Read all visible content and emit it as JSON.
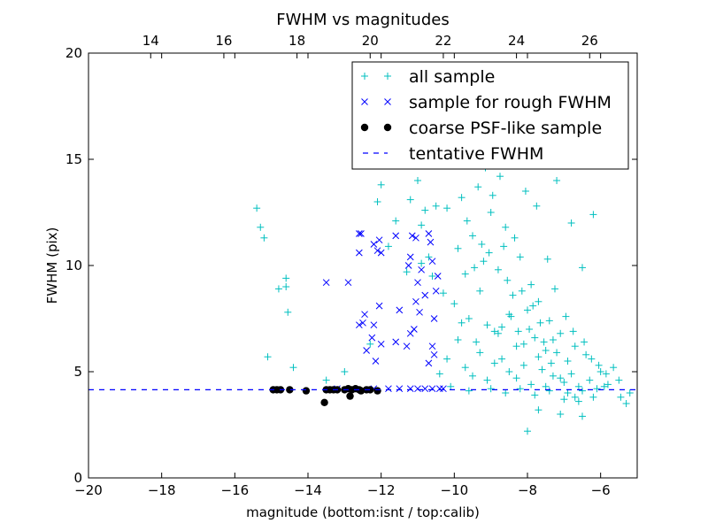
{
  "chart_data": {
    "type": "scatter",
    "title": "FWHM vs magnitudes",
    "xlabel": "magnitude (bottom:isnt / top:calib)",
    "ylabel": "FWHM (pix)",
    "xlim": [
      -20,
      -5
    ],
    "ylim": [
      0,
      20
    ],
    "top_xlim": [
      12.3,
      27.3
    ],
    "x_ticks": [
      -20,
      -18,
      -16,
      -14,
      -12,
      -10,
      -8,
      -6
    ],
    "x_tick_labels": [
      "−20",
      "−18",
      "−16",
      "−14",
      "−12",
      "−10",
      "−8",
      "−6"
    ],
    "top_x_ticks": [
      14,
      16,
      18,
      20,
      22,
      24,
      26
    ],
    "top_x_tick_labels": [
      "14",
      "16",
      "18",
      "20",
      "22",
      "24",
      "26"
    ],
    "y_ticks": [
      0,
      5,
      10,
      15,
      20
    ],
    "y_tick_labels": [
      "0",
      "5",
      "10",
      "15",
      "20"
    ],
    "grid": false,
    "legend_position": "top-right",
    "series": [
      {
        "name": "all sample",
        "marker": "plus",
        "color": "#00bfbf",
        "points": [
          [
            -15.4,
            12.7
          ],
          [
            -15.3,
            11.8
          ],
          [
            -15.2,
            11.3
          ],
          [
            -15.1,
            5.7
          ],
          [
            -14.8,
            8.9
          ],
          [
            -14.6,
            9.4
          ],
          [
            -14.55,
            7.8
          ],
          [
            -14.4,
            5.2
          ],
          [
            -14.6,
            9.0
          ],
          [
            -12.1,
            13.0
          ],
          [
            -12.0,
            13.8
          ],
          [
            -11.6,
            12.1
          ],
          [
            -11.2,
            13.1
          ],
          [
            -11.0,
            14.0
          ],
          [
            -10.9,
            11.9
          ],
          [
            -10.8,
            12.6
          ],
          [
            -10.5,
            12.8
          ],
          [
            -10.2,
            12.7
          ],
          [
            -9.8,
            13.2
          ],
          [
            -9.3,
            15.7
          ],
          [
            -9.0,
            19.0
          ],
          [
            -8.8,
            17.3
          ],
          [
            -8.4,
            19.2
          ],
          [
            -8.0,
            16.5
          ],
          [
            -7.8,
            15.2
          ],
          [
            -7.2,
            14.0
          ],
          [
            -6.8,
            12.0
          ],
          [
            -6.2,
            12.4
          ],
          [
            -6.5,
            9.9
          ],
          [
            -6.0,
            5.0
          ],
          [
            -5.8,
            4.4
          ],
          [
            -5.5,
            4.6
          ],
          [
            -5.3,
            3.5
          ],
          [
            -5.2,
            4.0
          ],
          [
            -8.0,
            2.2
          ],
          [
            -7.7,
            3.2
          ],
          [
            -7.1,
            3.0
          ],
          [
            -6.5,
            2.9
          ],
          [
            -10.6,
            9.5
          ],
          [
            -10.3,
            8.7
          ],
          [
            -10.0,
            8.2
          ],
          [
            -9.9,
            10.8
          ],
          [
            -9.7,
            9.6
          ],
          [
            -9.6,
            7.5
          ],
          [
            -9.5,
            11.4
          ],
          [
            -9.4,
            6.4
          ],
          [
            -9.3,
            8.8
          ],
          [
            -9.2,
            10.2
          ],
          [
            -9.1,
            7.2
          ],
          [
            -9.0,
            12.5
          ],
          [
            -8.9,
            6.9
          ],
          [
            -8.8,
            9.8
          ],
          [
            -8.7,
            5.6
          ],
          [
            -8.6,
            11.8
          ],
          [
            -8.5,
            7.7
          ],
          [
            -8.4,
            8.6
          ],
          [
            -8.3,
            6.2
          ],
          [
            -8.2,
            10.4
          ],
          [
            -8.1,
            5.3
          ],
          [
            -8.0,
            7.9
          ],
          [
            -7.9,
            9.1
          ],
          [
            -7.8,
            6.6
          ],
          [
            -7.7,
            8.3
          ],
          [
            -7.6,
            5.1
          ],
          [
            -7.5,
            6.0
          ],
          [
            -7.4,
            7.4
          ],
          [
            -7.3,
            4.8
          ],
          [
            -7.2,
            5.9
          ],
          [
            -7.1,
            6.8
          ],
          [
            -7.0,
            4.5
          ],
          [
            -6.9,
            5.5
          ],
          [
            -6.8,
            4.9
          ],
          [
            -6.7,
            6.2
          ],
          [
            -6.6,
            4.3
          ],
          [
            -6.4,
            5.8
          ],
          [
            -6.3,
            4.6
          ],
          [
            -6.1,
            4.2
          ],
          [
            -9.9,
            6.5
          ],
          [
            -9.7,
            5.2
          ],
          [
            -9.5,
            4.8
          ],
          [
            -9.3,
            5.9
          ],
          [
            -9.1,
            4.6
          ],
          [
            -8.9,
            5.4
          ],
          [
            -8.7,
            7.1
          ],
          [
            -8.5,
            5.0
          ],
          [
            -8.3,
            4.7
          ],
          [
            -8.1,
            6.3
          ],
          [
            -7.9,
            4.4
          ],
          [
            -7.7,
            5.7
          ],
          [
            -7.5,
            4.3
          ],
          [
            -7.3,
            6.5
          ],
          [
            -7.1,
            4.7
          ],
          [
            -6.9,
            4.0
          ],
          [
            -6.7,
            3.8
          ],
          [
            -6.5,
            4.1
          ],
          [
            -10.1,
            4.3
          ],
          [
            -9.6,
            4.1
          ],
          [
            -9.0,
            4.2
          ],
          [
            -8.6,
            4.0
          ],
          [
            -8.2,
            4.2
          ],
          [
            -7.8,
            3.9
          ],
          [
            -7.4,
            4.1
          ],
          [
            -7.0,
            3.7
          ],
          [
            -6.6,
            3.6
          ],
          [
            -6.2,
            3.8
          ],
          [
            -5.9,
            4.3
          ],
          [
            -8.8,
            6.8
          ],
          [
            -8.45,
            7.6
          ],
          [
            -8.15,
            8.8
          ],
          [
            -7.95,
            7.0
          ],
          [
            -7.65,
            7.3
          ],
          [
            -7.35,
            5.4
          ],
          [
            -8.55,
            9.3
          ],
          [
            -8.25,
            6.9
          ],
          [
            -7.85,
            8.1
          ],
          [
            -7.55,
            6.4
          ],
          [
            -9.45,
            9.9
          ],
          [
            -9.25,
            11.0
          ],
          [
            -9.05,
            10.6
          ],
          [
            -8.65,
            10.9
          ],
          [
            -8.35,
            11.3
          ],
          [
            -10.4,
            4.9
          ],
          [
            -10.2,
            5.6
          ],
          [
            -9.8,
            7.3
          ],
          [
            -9.65,
            12.1
          ],
          [
            -8.95,
            13.3
          ],
          [
            -8.75,
            14.2
          ],
          [
            -9.15,
            14.6
          ],
          [
            -9.35,
            13.7
          ],
          [
            -8.05,
            13.5
          ],
          [
            -7.75,
            12.8
          ],
          [
            -7.45,
            10.3
          ],
          [
            -7.25,
            8.9
          ],
          [
            -6.95,
            7.6
          ],
          [
            -6.75,
            6.9
          ],
          [
            -6.45,
            6.4
          ],
          [
            -6.25,
            5.6
          ],
          [
            -6.05,
            5.3
          ],
          [
            -5.85,
            4.9
          ],
          [
            -5.65,
            5.2
          ],
          [
            -5.45,
            3.8
          ],
          [
            -11.8,
            10.9
          ],
          [
            -10.9,
            10.1
          ],
          [
            -10.7,
            10.4
          ],
          [
            -11.3,
            9.7
          ],
          [
            -12.3,
            6.3
          ],
          [
            -13.0,
            5.0
          ],
          [
            -13.5,
            4.6
          ]
        ]
      },
      {
        "name": "sample for rough FWHM",
        "marker": "x",
        "color": "#0000ff",
        "points": [
          [
            -13.5,
            9.2
          ],
          [
            -12.9,
            9.2
          ],
          [
            -12.6,
            11.5
          ],
          [
            -12.55,
            11.5
          ],
          [
            -12.2,
            11.0
          ],
          [
            -12.1,
            10.7
          ],
          [
            -12.0,
            10.6
          ],
          [
            -12.05,
            11.2
          ],
          [
            -12.6,
            10.6
          ],
          [
            -11.6,
            11.4
          ],
          [
            -11.15,
            11.4
          ],
          [
            -11.05,
            11.3
          ],
          [
            -10.7,
            11.5
          ],
          [
            -10.65,
            11.1
          ],
          [
            -10.9,
            9.8
          ],
          [
            -11.0,
            9.2
          ],
          [
            -11.05,
            8.3
          ],
          [
            -11.1,
            7.0
          ],
          [
            -11.2,
            10.4
          ],
          [
            -11.25,
            10.0
          ],
          [
            -10.8,
            8.6
          ],
          [
            -10.6,
            10.2
          ],
          [
            -10.5,
            8.8
          ],
          [
            -10.45,
            9.5
          ],
          [
            -10.55,
            7.5
          ],
          [
            -10.6,
            6.2
          ],
          [
            -10.7,
            5.4
          ],
          [
            -10.55,
            5.8
          ],
          [
            -11.5,
            7.9
          ],
          [
            -11.2,
            6.8
          ],
          [
            -12.2,
            7.2
          ],
          [
            -12.25,
            6.6
          ],
          [
            -12.05,
            8.1
          ],
          [
            -12.45,
            7.7
          ],
          [
            -12.5,
            7.3
          ],
          [
            -12.6,
            7.2
          ],
          [
            -12.4,
            6.0
          ],
          [
            -12.15,
            5.5
          ],
          [
            -12.0,
            6.3
          ],
          [
            -11.6,
            6.4
          ],
          [
            -11.3,
            6.2
          ],
          [
            -10.95,
            7.8
          ],
          [
            -12.2,
            4.2
          ],
          [
            -11.8,
            4.2
          ],
          [
            -11.5,
            4.2
          ],
          [
            -11.2,
            4.2
          ],
          [
            -11.0,
            4.2
          ],
          [
            -10.8,
            4.2
          ],
          [
            -10.6,
            4.2
          ],
          [
            -10.4,
            4.2
          ],
          [
            -10.3,
            4.2
          ],
          [
            -13.2,
            4.2
          ],
          [
            -12.8,
            4.2
          ]
        ]
      },
      {
        "name": "coarse PSF-like sample",
        "marker": "circle",
        "color": "#000000",
        "points": [
          [
            -14.95,
            4.15
          ],
          [
            -14.85,
            4.15
          ],
          [
            -14.75,
            4.15
          ],
          [
            -14.5,
            4.15
          ],
          [
            -14.05,
            4.1
          ],
          [
            -13.55,
            3.55
          ],
          [
            -13.5,
            4.15
          ],
          [
            -13.4,
            4.15
          ],
          [
            -13.3,
            4.15
          ],
          [
            -13.2,
            4.15
          ],
          [
            -13.0,
            4.15
          ],
          [
            -12.9,
            4.2
          ],
          [
            -12.85,
            3.85
          ],
          [
            -12.8,
            4.15
          ],
          [
            -12.7,
            4.2
          ],
          [
            -12.6,
            4.15
          ],
          [
            -12.55,
            4.1
          ],
          [
            -12.4,
            4.15
          ],
          [
            -12.3,
            4.15
          ],
          [
            -12.1,
            4.1
          ]
        ]
      },
      {
        "name": "tentative FWHM",
        "marker": "dashed-line",
        "color": "#0000ff",
        "y": 4.15
      }
    ]
  }
}
